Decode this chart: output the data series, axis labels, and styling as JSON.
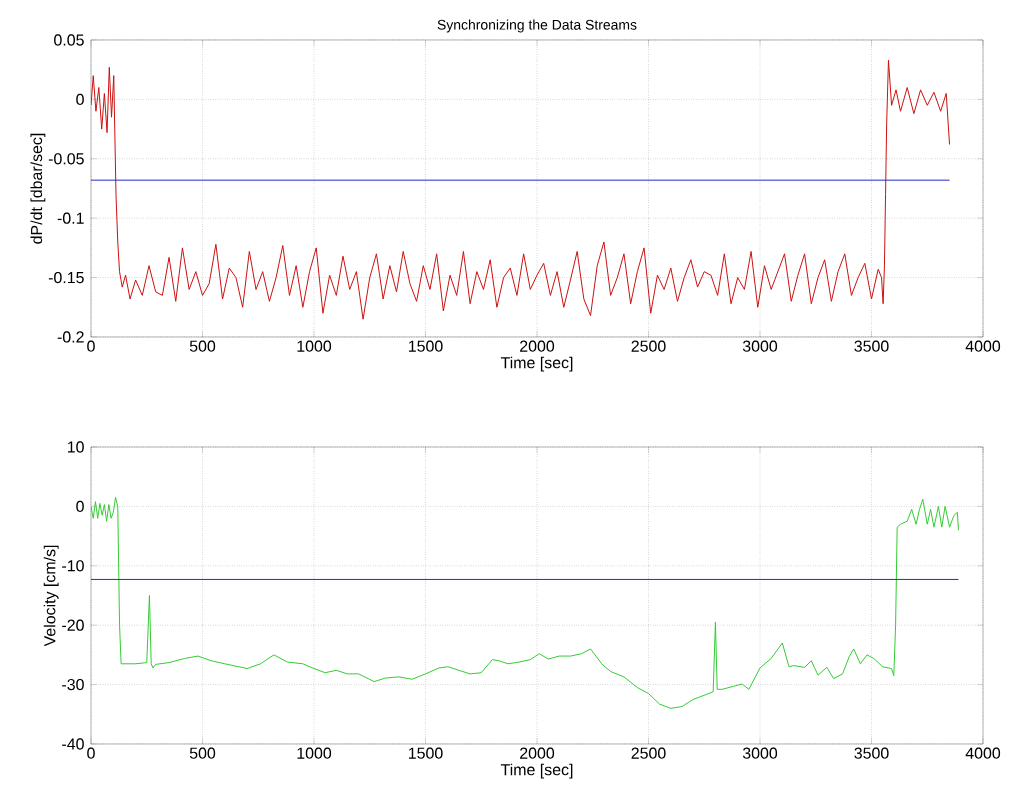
{
  "chart_data": [
    {
      "type": "line",
      "title": "Synchronizing the Data Streams",
      "xlabel": "Time [sec]",
      "ylabel": "dP/dt [dbar/sec]",
      "xlim": [
        0,
        4000
      ],
      "ylim": [
        -0.2,
        0.05
      ],
      "xticks": [
        0,
        500,
        1000,
        1500,
        2000,
        2500,
        3000,
        3500,
        4000
      ],
      "yticks": [
        -0.2,
        -0.15,
        -0.1,
        -0.05,
        0,
        0.05
      ],
      "grid": true,
      "series": [
        {
          "color": "#cc1010",
          "x": [
            0,
            10,
            22,
            35,
            48,
            60,
            72,
            82,
            92,
            102,
            112,
            120,
            128,
            140,
            155,
            175,
            200,
            230,
            260,
            290,
            320,
            350,
            380,
            410,
            440,
            470,
            500,
            530,
            560,
            590,
            620,
            650,
            680,
            710,
            740,
            770,
            800,
            830,
            860,
            890,
            920,
            950,
            980,
            1010,
            1040,
            1070,
            1100,
            1130,
            1160,
            1190,
            1220,
            1250,
            1280,
            1310,
            1340,
            1370,
            1400,
            1430,
            1460,
            1490,
            1520,
            1550,
            1580,
            1610,
            1640,
            1670,
            1700,
            1730,
            1760,
            1790,
            1820,
            1850,
            1880,
            1910,
            1940,
            1970,
            2000,
            2030,
            2060,
            2090,
            2120,
            2150,
            2180,
            2210,
            2240,
            2270,
            2300,
            2330,
            2360,
            2390,
            2420,
            2450,
            2480,
            2510,
            2540,
            2570,
            2600,
            2630,
            2660,
            2690,
            2720,
            2750,
            2780,
            2810,
            2840,
            2870,
            2900,
            2930,
            2960,
            2990,
            3020,
            3050,
            3080,
            3110,
            3140,
            3170,
            3200,
            3230,
            3260,
            3290,
            3320,
            3350,
            3380,
            3410,
            3440,
            3470,
            3500,
            3530,
            3545,
            3552,
            3558,
            3563,
            3568,
            3576,
            3590,
            3610,
            3630,
            3660,
            3690,
            3720,
            3750,
            3780,
            3810,
            3835,
            3850
          ],
          "values": [
            -0.005,
            0.02,
            -0.01,
            0.01,
            -0.025,
            0.005,
            -0.028,
            0.027,
            -0.015,
            0.02,
            -0.08,
            -0.12,
            -0.145,
            -0.158,
            -0.148,
            -0.168,
            -0.152,
            -0.165,
            -0.14,
            -0.162,
            -0.165,
            -0.133,
            -0.17,
            -0.125,
            -0.16,
            -0.145,
            -0.165,
            -0.155,
            -0.122,
            -0.168,
            -0.142,
            -0.15,
            -0.175,
            -0.128,
            -0.16,
            -0.145,
            -0.17,
            -0.15,
            -0.123,
            -0.165,
            -0.14,
            -0.175,
            -0.145,
            -0.125,
            -0.18,
            -0.148,
            -0.165,
            -0.132,
            -0.16,
            -0.145,
            -0.185,
            -0.15,
            -0.13,
            -0.168,
            -0.14,
            -0.162,
            -0.128,
            -0.155,
            -0.17,
            -0.14,
            -0.16,
            -0.13,
            -0.178,
            -0.148,
            -0.165,
            -0.128,
            -0.172,
            -0.145,
            -0.16,
            -0.135,
            -0.175,
            -0.15,
            -0.142,
            -0.165,
            -0.13,
            -0.16,
            -0.148,
            -0.138,
            -0.165,
            -0.145,
            -0.175,
            -0.152,
            -0.128,
            -0.168,
            -0.182,
            -0.14,
            -0.12,
            -0.165,
            -0.15,
            -0.13,
            -0.172,
            -0.145,
            -0.125,
            -0.18,
            -0.148,
            -0.16,
            -0.142,
            -0.17,
            -0.15,
            -0.135,
            -0.158,
            -0.145,
            -0.148,
            -0.165,
            -0.13,
            -0.172,
            -0.15,
            -0.16,
            -0.128,
            -0.175,
            -0.14,
            -0.16,
            -0.145,
            -0.13,
            -0.17,
            -0.148,
            -0.13,
            -0.172,
            -0.15,
            -0.135,
            -0.17,
            -0.145,
            -0.13,
            -0.165,
            -0.15,
            -0.138,
            -0.168,
            -0.143,
            -0.15,
            -0.172,
            -0.14,
            -0.08,
            -0.02,
            0.033,
            -0.005,
            0.008,
            -0.01,
            0.01,
            -0.012,
            0.008,
            -0.005,
            0.006,
            -0.01,
            0.005,
            -0.038
          ]
        },
        {
          "color": "#2828c8",
          "x": [
            0,
            3850
          ],
          "values": [
            -0.068,
            -0.068
          ]
        }
      ]
    },
    {
      "type": "line",
      "xlabel": "Time [sec]",
      "ylabel": "Velocity [cm/s]",
      "xlim": [
        0,
        4000
      ],
      "ylim": [
        -40,
        10
      ],
      "xticks": [
        0,
        500,
        1000,
        1500,
        2000,
        2500,
        3000,
        3500,
        4000
      ],
      "yticks": [
        -40,
        -30,
        -20,
        -10,
        0,
        10
      ],
      "grid": true,
      "series": [
        {
          "color": "#33cc33",
          "x": [
            0,
            10,
            20,
            30,
            40,
            50,
            60,
            70,
            80,
            90,
            100,
            110,
            120,
            128,
            135,
            145,
            200,
            250,
            262,
            270,
            278,
            290,
            350,
            420,
            480,
            540,
            600,
            700,
            760,
            820,
            880,
            950,
            1000,
            1050,
            1100,
            1150,
            1200,
            1270,
            1320,
            1380,
            1440,
            1500,
            1560,
            1600,
            1650,
            1700,
            1750,
            1800,
            1830,
            1870,
            1920,
            1970,
            2010,
            2050,
            2100,
            2150,
            2200,
            2240,
            2290,
            2330,
            2390,
            2450,
            2500,
            2550,
            2600,
            2650,
            2700,
            2750,
            2790,
            2800,
            2808,
            2815,
            2830,
            2880,
            2920,
            2950,
            3000,
            3050,
            3100,
            3130,
            3150,
            3200,
            3230,
            3260,
            3300,
            3330,
            3370,
            3400,
            3420,
            3450,
            3480,
            3510,
            3550,
            3590,
            3600,
            3608,
            3615,
            3630,
            3660,
            3680,
            3700,
            3715,
            3730,
            3750,
            3765,
            3780,
            3800,
            3815,
            3830,
            3850,
            3870,
            3885,
            3890
          ],
          "values": [
            0,
            -2,
            0.8,
            -2,
            0.5,
            -1.5,
            0.3,
            -2.5,
            0.3,
            -2,
            -1,
            1.5,
            0,
            -20,
            -26.5,
            -26.5,
            -26.5,
            -26.3,
            -15,
            -26.5,
            -27.2,
            -26.6,
            -26.3,
            -25.6,
            -25.2,
            -26,
            -26.5,
            -27.3,
            -26.5,
            -25,
            -26.2,
            -26.5,
            -27.3,
            -28,
            -27.6,
            -28.2,
            -28.2,
            -29.5,
            -28.9,
            -28.7,
            -29.1,
            -28.2,
            -27.2,
            -27,
            -27.6,
            -28.2,
            -28,
            -25.8,
            -26,
            -26.5,
            -26.2,
            -25.8,
            -24.8,
            -25.7,
            -25.2,
            -25.2,
            -24.8,
            -24,
            -26.5,
            -27.8,
            -28.7,
            -30.5,
            -31.5,
            -33.3,
            -34,
            -33.7,
            -32.5,
            -31.8,
            -31.2,
            -19.5,
            -30.8,
            -30.8,
            -30.8,
            -30.3,
            -29.9,
            -30.8,
            -27.2,
            -25.6,
            -23,
            -27,
            -26.8,
            -27.1,
            -26,
            -28.4,
            -27.1,
            -29,
            -28.2,
            -25.3,
            -24,
            -26.5,
            -25,
            -25.6,
            -27,
            -27.3,
            -28.5,
            -20,
            -3.5,
            -3,
            -2.5,
            -0.5,
            -3,
            -0.5,
            1.2,
            -3,
            -0.5,
            -3.5,
            0,
            -3.5,
            0,
            -3.5,
            -1.5,
            -1,
            -4
          ]
        },
        {
          "color": "#2828c8",
          "x": [
            0,
            3890
          ],
          "values": [
            -12.3,
            -12.3
          ]
        }
      ]
    }
  ]
}
